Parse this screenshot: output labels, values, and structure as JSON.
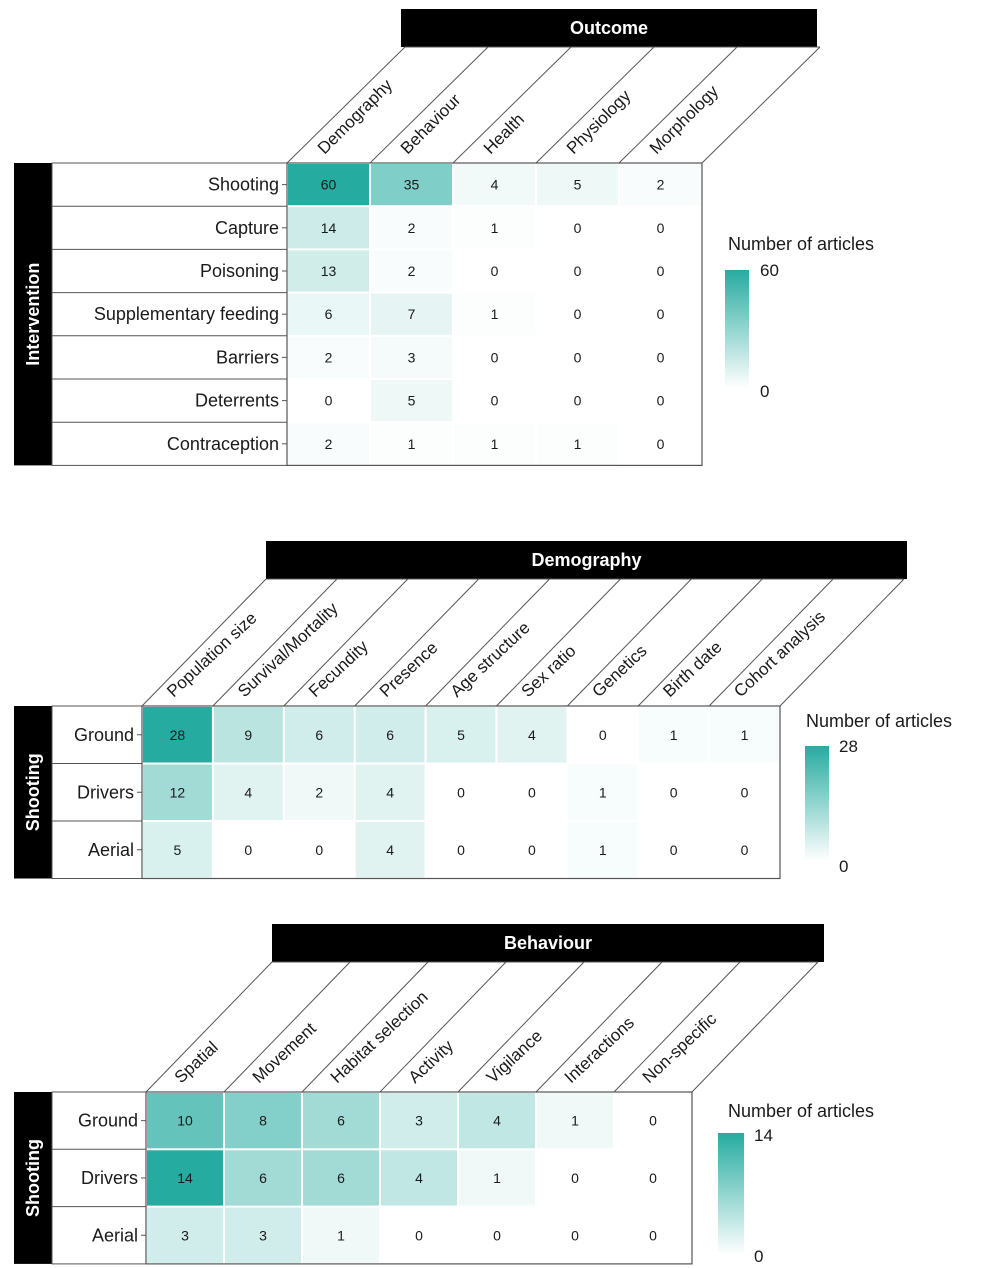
{
  "chart_data": [
    {
      "type": "heatmap",
      "title": "Outcome",
      "row_group": "Intervention",
      "columns": [
        "Demography",
        "Behaviour",
        "Health",
        "Physiology",
        "Morphology"
      ],
      "rows": [
        "Shooting",
        "Capture",
        "Poisoning",
        "Supplementary feeding",
        "Barriers",
        "Deterrents",
        "Contraception"
      ],
      "values": [
        [
          60,
          35,
          4,
          5,
          2
        ],
        [
          14,
          2,
          1,
          0,
          0
        ],
        [
          13,
          2,
          0,
          0,
          0
        ],
        [
          6,
          7,
          1,
          0,
          0
        ],
        [
          2,
          3,
          0,
          0,
          0
        ],
        [
          0,
          5,
          0,
          0,
          0
        ],
        [
          2,
          1,
          1,
          1,
          0
        ]
      ],
      "legend": {
        "title": "Number of articles",
        "min": 0,
        "max": 60,
        "min_label": "0",
        "max_label": "60"
      }
    },
    {
      "type": "heatmap",
      "title": "Demography",
      "row_group": "Shooting",
      "columns": [
        "Population size",
        "Survival/Mortality",
        "Fecundity",
        "Presence",
        "Age structure",
        "Sex ratio",
        "Genetics",
        "Birth date",
        "Cohort analysis"
      ],
      "rows": [
        "Ground",
        "Drivers",
        "Aerial"
      ],
      "values": [
        [
          28,
          9,
          6,
          6,
          5,
          4,
          0,
          1,
          1
        ],
        [
          12,
          4,
          2,
          4,
          0,
          0,
          1,
          0,
          0
        ],
        [
          5,
          0,
          0,
          4,
          0,
          0,
          1,
          0,
          0
        ]
      ],
      "legend": {
        "title": "Number of articles",
        "min": 0,
        "max": 28,
        "min_label": "0",
        "max_label": "28"
      }
    },
    {
      "type": "heatmap",
      "title": "Behaviour",
      "row_group": "Shooting",
      "columns": [
        "Spatial",
        "Movement",
        "Habitat selection",
        "Activity",
        "Vigilance",
        "Interactions",
        "Non-specific"
      ],
      "rows": [
        "Ground",
        "Drivers",
        "Aerial"
      ],
      "values": [
        [
          10,
          8,
          6,
          3,
          4,
          1,
          0
        ],
        [
          14,
          6,
          6,
          4,
          1,
          0,
          0
        ],
        [
          3,
          3,
          1,
          0,
          0,
          0,
          0
        ]
      ],
      "legend": {
        "title": "Number of articles",
        "min": 0,
        "max": 14,
        "min_label": "0",
        "max_label": "14"
      }
    }
  ],
  "colors": {
    "high": "#26aba0",
    "low": "#ffffff",
    "banner": "#000000",
    "border": "#555555"
  }
}
